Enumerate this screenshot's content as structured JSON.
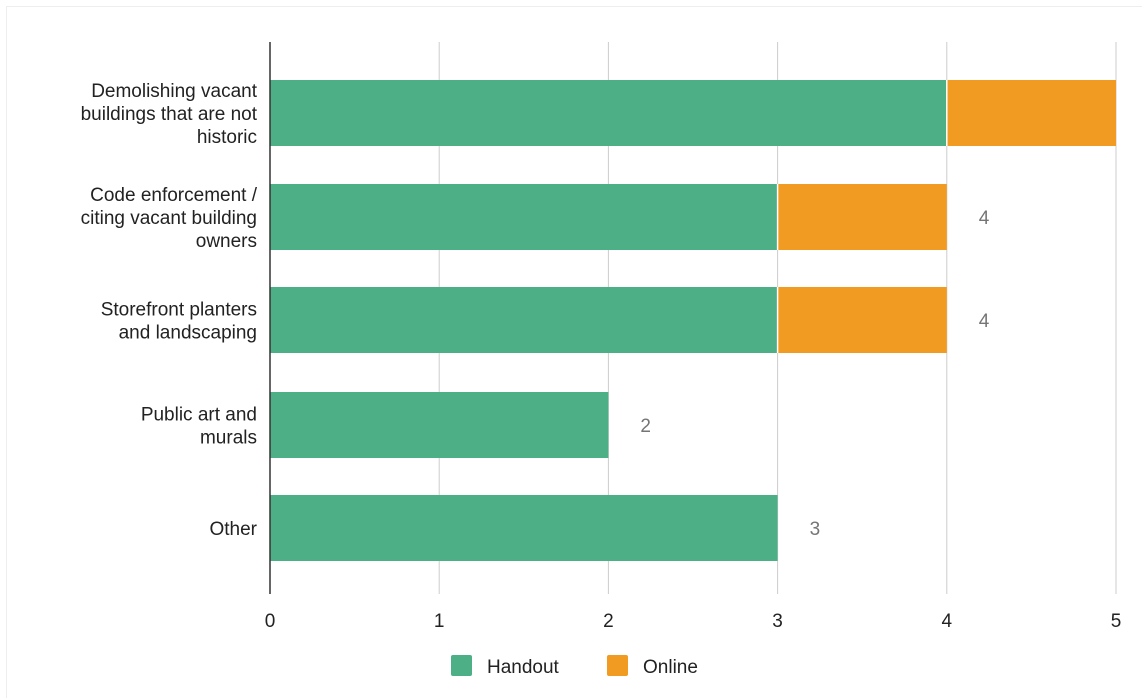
{
  "chart_data": {
    "type": "bar",
    "orientation": "horizontal",
    "stacked": true,
    "categories": [
      [
        "Demolishing vacant",
        "buildings that are not",
        "historic"
      ],
      [
        "Code enforcement /",
        "citing vacant building",
        "owners"
      ],
      [
        "Storefront planters",
        "and landscaping"
      ],
      [
        "Public art and",
        "murals"
      ],
      [
        "Other"
      ]
    ],
    "series": [
      {
        "name": "Handout",
        "color": "#4caf86",
        "values": [
          4,
          3,
          3,
          2,
          3
        ]
      },
      {
        "name": "Online",
        "color": "#f19b22",
        "values": [
          1,
          1,
          1,
          0,
          0
        ]
      }
    ],
    "totals": [
      "5",
      "4",
      "4",
      "2",
      "3"
    ],
    "x_ticks": [
      "0",
      "1",
      "2",
      "3",
      "4",
      "5"
    ],
    "xlim": [
      0,
      5
    ],
    "grid": true,
    "legend_position": "bottom"
  }
}
